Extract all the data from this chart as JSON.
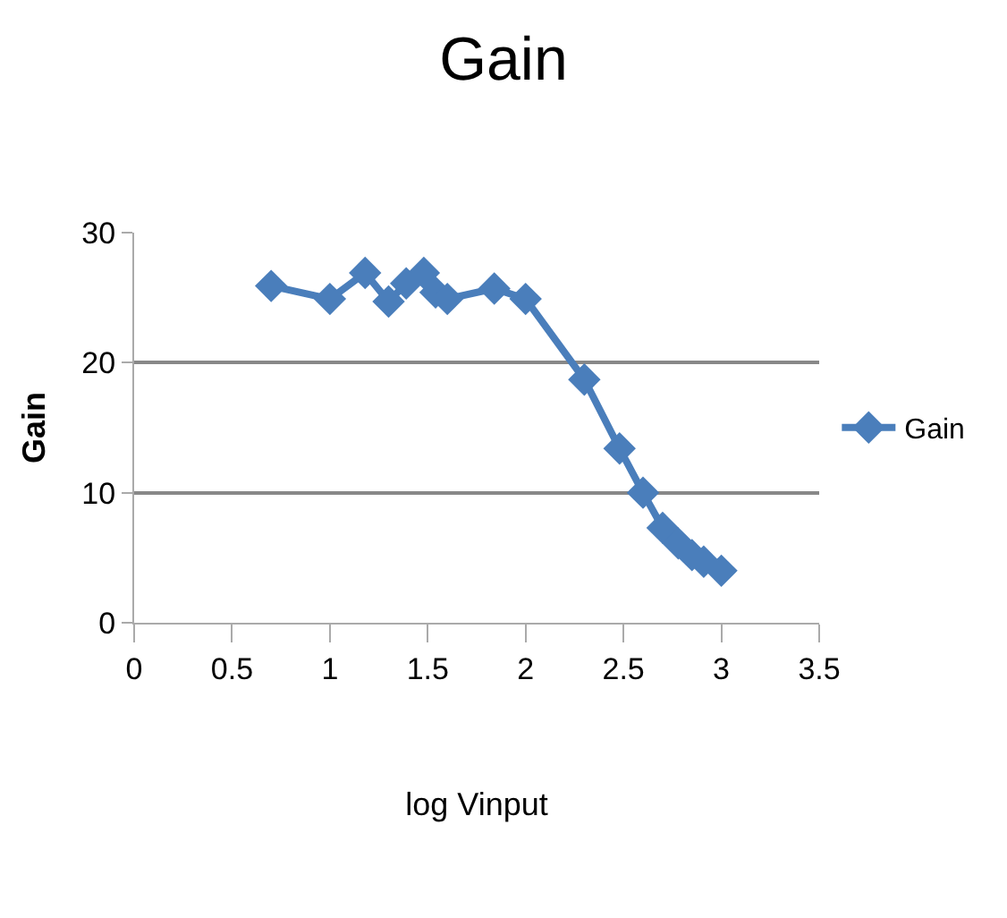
{
  "chart_data": {
    "type": "line",
    "title": "Gain",
    "xlabel": "log Vinput",
    "ylabel": "Gain",
    "series": [
      {
        "name": "Gain",
        "color": "#4a7ebb",
        "x": [
          0.7,
          1.0,
          1.18,
          1.3,
          1.39,
          1.48,
          1.54,
          1.6,
          1.84,
          2.0,
          2.3,
          2.48,
          2.6,
          2.7,
          2.78,
          2.85,
          2.91,
          3.0
        ],
        "values": [
          25.9,
          24.9,
          26.9,
          24.7,
          26.1,
          26.9,
          25.4,
          24.9,
          25.7,
          24.9,
          18.7,
          13.4,
          10,
          7.3,
          6.1,
          5.2,
          4.7,
          4.0
        ]
      }
    ],
    "xlim": [
      0,
      3.5
    ],
    "xticks": [
      0,
      0.5,
      1,
      1.5,
      2,
      2.5,
      3,
      3.5
    ],
    "ylim": [
      0,
      30
    ],
    "yticks": [
      0,
      10,
      20,
      30
    ],
    "grid": "y",
    "legend": "right",
    "marker": "diamond",
    "line_style": "solid"
  }
}
